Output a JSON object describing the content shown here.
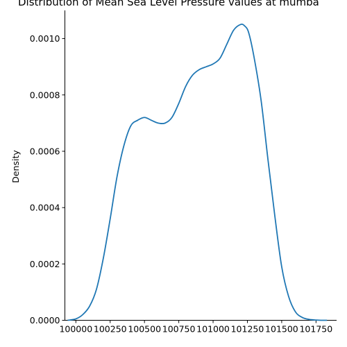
{
  "chart_data": {
    "type": "line",
    "title": "Distribution of Mean Sea Level Pressure values at mumba",
    "xlabel": "",
    "ylabel": "Density",
    "xlim": [
      99920,
      101900
    ],
    "ylim": [
      0,
      0.0011
    ],
    "x_ticks": [
      100000,
      100250,
      100500,
      100750,
      101000,
      101250,
      101500,
      101750
    ],
    "x_tick_labels": [
      "100000",
      "100250",
      "100500",
      "100750",
      "101000",
      "101250",
      "101500",
      "101750"
    ],
    "y_ticks": [
      0,
      0.0002,
      0.0004,
      0.0006,
      0.0008,
      0.001
    ],
    "y_tick_labels": [
      "0.0000",
      "0.0002",
      "0.0004",
      "0.0006",
      "0.0008",
      "0.0010"
    ],
    "grid": false,
    "series": [
      {
        "color": "#1f77b4",
        "x": [
          99940,
          100000,
          100050,
          100100,
          100150,
          100200,
          100250,
          100300,
          100350,
          100400,
          100450,
          100500,
          100550,
          100600,
          100650,
          100700,
          100750,
          100800,
          100850,
          100900,
          100950,
          101000,
          101050,
          101100,
          101150,
          101200,
          101230,
          101260,
          101300,
          101350,
          101400,
          101450,
          101500,
          101550,
          101600,
          101650,
          101700,
          101750,
          101800,
          101830
        ],
        "y": [
          0.0,
          5e-06,
          2e-05,
          5e-05,
          0.00011,
          0.00022,
          0.00036,
          0.00051,
          0.00062,
          0.00069,
          0.00071,
          0.00072,
          0.00071,
          0.0007,
          0.0007,
          0.00072,
          0.00077,
          0.00083,
          0.00087,
          0.00089,
          0.0009,
          0.00091,
          0.00093,
          0.00098,
          0.00103,
          0.00105,
          0.001045,
          0.00102,
          0.00093,
          0.00078,
          0.00057,
          0.00037,
          0.00019,
          8.5e-05,
          3e-05,
          1e-05,
          3e-06,
          1e-06,
          0.0,
          0.0
        ]
      }
    ]
  }
}
